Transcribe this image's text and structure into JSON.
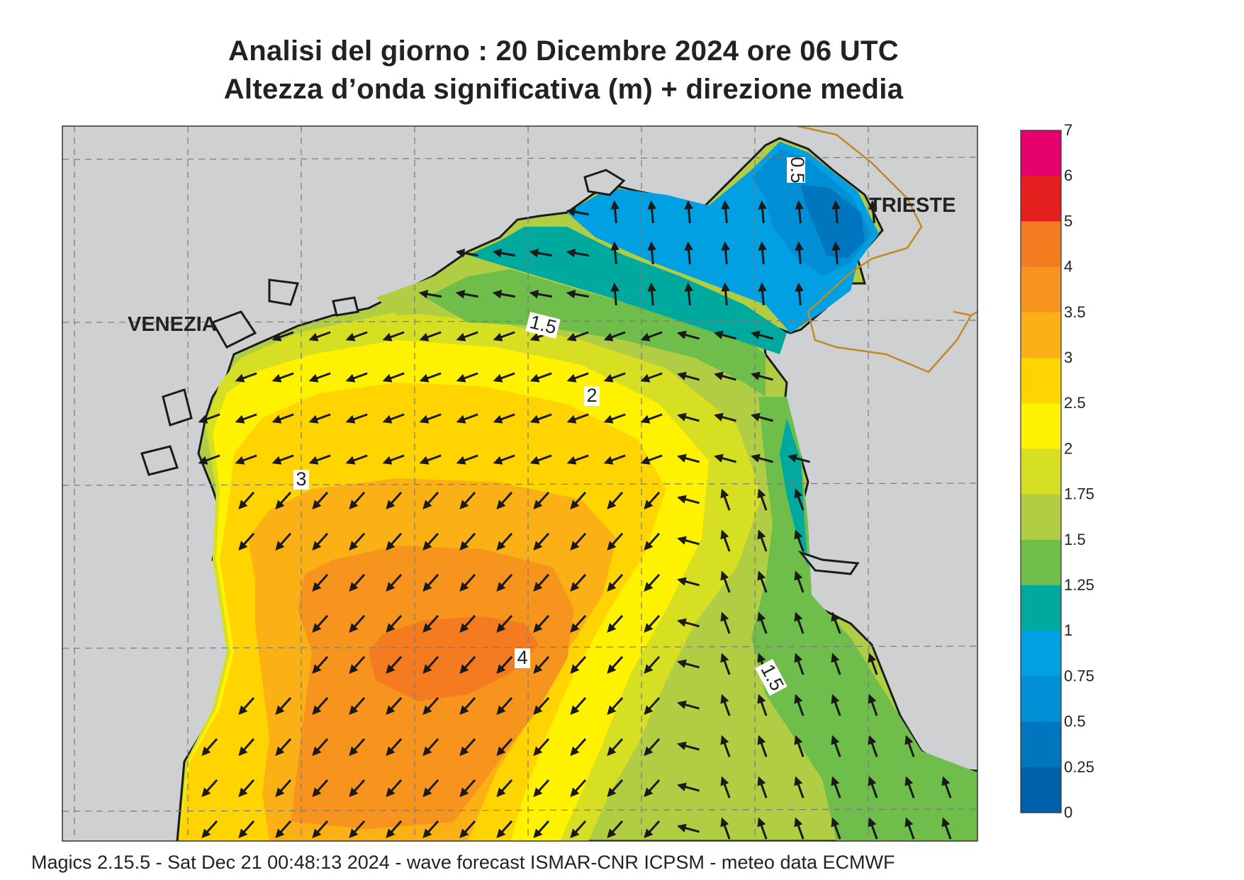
{
  "header": {
    "title_line1": "Analisi del giorno :  20 Dicembre  2024   ore 06 UTC",
    "title_line2": "Altezza d’onda significativa (m) + direzione media"
  },
  "footer": {
    "text": "Magics 2.15.5 - Sat Dec 21 00:48:13 2024 - wave forecast  ISMAR-CNR  ICPSM - meteo data   ECMWF"
  },
  "cities": [
    "VENEZIA",
    "TRIESTE"
  ],
  "contour_labels": [
    "0.5",
    "1.5",
    "2",
    "3",
    "4",
    "1.5"
  ],
  "colorbar": {
    "levels": [
      "7",
      "6",
      "5",
      "4",
      "3.5",
      "3",
      "2.5",
      "2",
      "1.75",
      "1.5",
      "1.25",
      "1",
      "0.75",
      "0.5",
      "0.25",
      "0"
    ],
    "colors": [
      "#e5006d",
      "#e4201e",
      "#f47b20",
      "#f7941d",
      "#fbb116",
      "#ffd400",
      "#fff200",
      "#d7df23",
      "#b1cd43",
      "#6fbd4a",
      "#00a99d",
      "#00a0e3",
      "#008fd5",
      "#0076bf",
      "#0060aa"
    ]
  },
  "colors": {
    "land": "#cfd0d2",
    "coast": "#1b1b1b",
    "border": "#c08a22",
    "arrow": "#1a1a1a"
  }
}
